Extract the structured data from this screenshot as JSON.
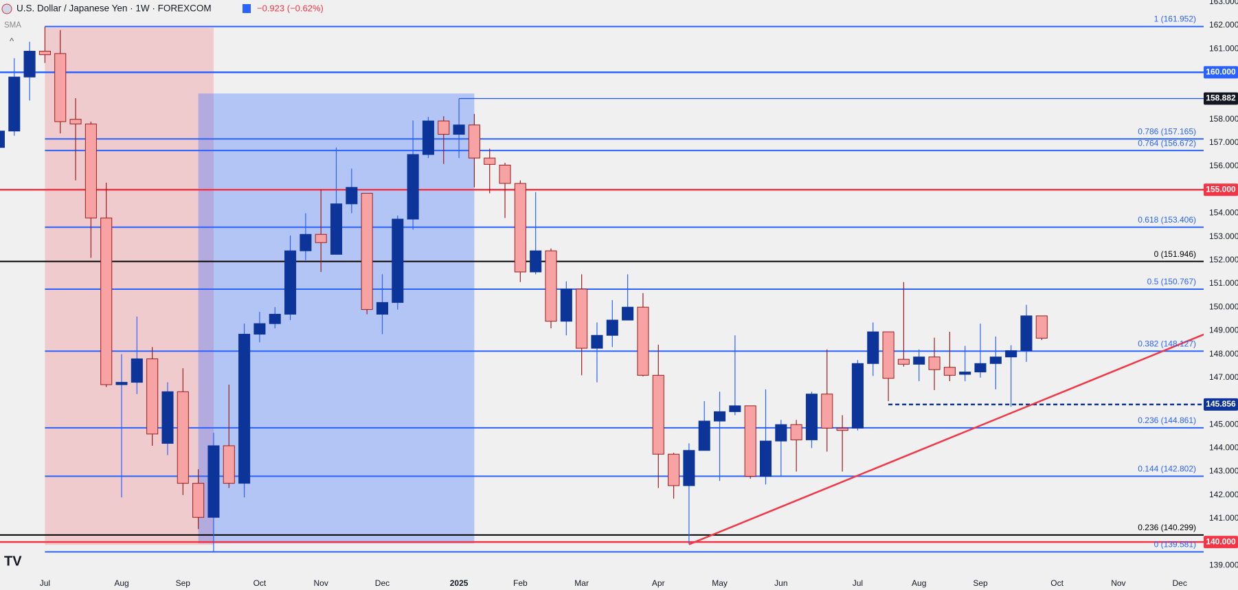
{
  "header": {
    "symbol": "U.S. Dollar / Japanese Yen · 1W · FOREXCOM",
    "change": "−0.923 (−0.62%)",
    "indicator": "SMA"
  },
  "chart_data": {
    "type": "candlestick",
    "categories": [
      null,
      null,
      null,
      "Jul",
      null,
      null,
      null,
      null,
      "Aug",
      null,
      null,
      null,
      "Sep",
      null,
      null,
      null,
      null,
      "Oct",
      null,
      null,
      null,
      "Nov",
      null,
      null,
      null,
      "Dec",
      null,
      null,
      null,
      null,
      "2025",
      null,
      null,
      null,
      "Feb",
      null,
      null,
      null,
      "Mar",
      null,
      null,
      null,
      null,
      "Apr",
      null,
      null,
      null,
      "May",
      null,
      null,
      null,
      "Jun",
      null,
      null,
      null,
      null,
      "Jul",
      null,
      null,
      null,
      "Aug",
      null,
      null,
      null,
      "Sep",
      null,
      null,
      null,
      null,
      "Oct",
      null,
      null,
      null,
      "Nov",
      null,
      null,
      null,
      "Dec"
    ],
    "ohlc": [
      [
        156.8,
        158.0,
        156.5,
        157.5
      ],
      [
        157.5,
        160.6,
        157.3,
        159.8
      ],
      [
        159.8,
        161.3,
        158.8,
        160.9
      ],
      [
        160.9,
        161.95,
        160.4,
        160.75
      ],
      [
        160.8,
        161.8,
        157.4,
        157.9
      ],
      [
        158.0,
        158.9,
        155.4,
        157.8
      ],
      [
        157.8,
        157.9,
        152.1,
        153.8
      ],
      [
        153.8,
        155.3,
        146.6,
        146.7
      ],
      [
        146.7,
        148.0,
        141.9,
        146.8
      ],
      [
        146.8,
        149.6,
        146.3,
        147.8
      ],
      [
        147.8,
        148.3,
        144.1,
        144.6
      ],
      [
        144.2,
        146.8,
        143.7,
        146.4
      ],
      [
        146.4,
        147.4,
        142.0,
        142.5
      ],
      [
        142.5,
        143.1,
        140.55,
        141.05
      ],
      [
        141.05,
        144.65,
        139.58,
        144.1
      ],
      [
        144.1,
        146.7,
        142.3,
        142.5
      ],
      [
        142.5,
        149.3,
        141.9,
        148.85
      ],
      [
        148.85,
        149.8,
        148.5,
        149.3
      ],
      [
        149.3,
        150.0,
        149.1,
        149.7
      ],
      [
        149.7,
        153.05,
        149.45,
        152.4
      ],
      [
        152.4,
        154.0,
        152.0,
        153.1
      ],
      [
        153.1,
        155.0,
        151.5,
        152.75
      ],
      [
        152.25,
        156.8,
        152.25,
        154.4
      ],
      [
        154.4,
        155.9,
        154.0,
        155.1
      ],
      [
        154.85,
        154.85,
        149.7,
        149.9
      ],
      [
        149.7,
        151.4,
        148.85,
        150.2
      ],
      [
        150.2,
        153.9,
        149.9,
        153.75
      ],
      [
        153.75,
        157.95,
        153.3,
        156.5
      ],
      [
        156.5,
        158.1,
        156.35,
        157.93
      ],
      [
        157.93,
        158.13,
        156.1,
        157.36
      ],
      [
        157.36,
        158.88,
        156.35,
        157.76
      ],
      [
        157.76,
        158.23,
        155.1,
        156.35
      ],
      [
        156.35,
        156.75,
        154.85,
        156.08
      ],
      [
        156.05,
        156.15,
        153.8,
        155.27
      ],
      [
        155.27,
        155.4,
        151.07,
        151.5
      ],
      [
        151.5,
        154.9,
        151.4,
        152.4
      ],
      [
        152.4,
        152.5,
        149.1,
        149.4
      ],
      [
        149.4,
        151.1,
        148.8,
        150.77
      ],
      [
        150.77,
        151.4,
        147.1,
        148.25
      ],
      [
        148.25,
        149.35,
        146.8,
        148.8
      ],
      [
        148.8,
        150.3,
        148.3,
        149.45
      ],
      [
        149.45,
        151.4,
        149.45,
        150.0
      ],
      [
        150.0,
        150.6,
        147.05,
        147.1
      ],
      [
        147.1,
        148.4,
        142.3,
        143.74
      ],
      [
        143.74,
        143.8,
        141.85,
        142.4
      ],
      [
        142.4,
        144.2,
        139.9,
        143.9
      ],
      [
        143.9,
        146.0,
        143.9,
        145.15
      ],
      [
        145.15,
        146.4,
        142.6,
        145.55
      ],
      [
        145.55,
        148.8,
        145.4,
        145.8
      ],
      [
        145.8,
        145.8,
        142.7,
        142.8
      ],
      [
        142.8,
        146.5,
        142.45,
        144.3
      ],
      [
        144.3,
        145.2,
        142.8,
        145.0
      ],
      [
        145.0,
        145.2,
        143.0,
        144.35
      ],
      [
        144.35,
        146.4,
        144.0,
        146.3
      ],
      [
        146.3,
        148.2,
        143.85,
        144.85
      ],
      [
        144.85,
        145.4,
        143.0,
        144.75
      ],
      [
        144.85,
        147.75,
        144.75,
        147.6
      ],
      [
        147.6,
        149.35,
        147.07,
        148.95
      ],
      [
        148.95,
        148.95,
        146.0,
        146.97
      ],
      [
        147.78,
        151.07,
        147.47,
        147.57
      ],
      [
        147.57,
        148.2,
        146.85,
        147.88
      ],
      [
        147.88,
        148.7,
        146.47,
        147.34
      ],
      [
        147.44,
        148.95,
        146.85,
        147.1
      ],
      [
        147.14,
        148.35,
        146.85,
        147.24
      ],
      [
        147.24,
        149.3,
        147.0,
        147.6
      ],
      [
        147.6,
        148.75,
        146.5,
        147.88
      ],
      [
        147.88,
        148.38,
        145.76,
        148.15
      ],
      [
        148.15,
        150.1,
        147.67,
        149.63
      ],
      [
        149.63,
        149.63,
        148.6,
        148.68
      ],
      null,
      null,
      null,
      null,
      null,
      null,
      null,
      null,
      null
    ],
    "up_color": "#0d3599",
    "up_wick": "#2962ff",
    "down_color": "#f7a3a3",
    "down_wick": "#9c1c1c",
    "xlim": [
      0.07,
      78.56
    ],
    "ylim": [
      138.6,
      163.08
    ],
    "yticks": [
      {
        "value": 139,
        "label": "139.000"
      },
      {
        "value": 141,
        "label": "141.000"
      },
      {
        "value": 142,
        "label": "142.000"
      },
      {
        "value": 143,
        "label": "143.000"
      },
      {
        "value": 144,
        "label": "144.000"
      },
      {
        "value": 145,
        "label": "145.000"
      },
      {
        "value": 147,
        "label": "147.000"
      },
      {
        "value": 148,
        "label": "148.000"
      },
      {
        "value": 149,
        "label": "149.000"
      },
      {
        "value": 150,
        "label": "150.000"
      },
      {
        "value": 151,
        "label": "151.000"
      },
      {
        "value": 152,
        "label": "152.000"
      },
      {
        "value": 153,
        "label": "153.000"
      },
      {
        "value": 154,
        "label": "154.000"
      },
      {
        "value": 156,
        "label": "156.000"
      },
      {
        "value": 157,
        "label": "157.000"
      },
      {
        "value": 158,
        "label": "158.000"
      },
      {
        "value": 161,
        "label": "161.000"
      },
      {
        "value": 162,
        "label": "162.000"
      },
      {
        "value": 163,
        "label": "163.000"
      }
    ],
    "zones": [
      {
        "start": 3,
        "end": 14,
        "top": 161.9,
        "bottom": 139.88,
        "color": "rgba(242,54,69,0.2)"
      },
      {
        "start": 13,
        "end": 31,
        "top": 159.1,
        "bottom": 139.94,
        "color": "rgba(41,98,255,0.3)"
      }
    ],
    "levels": [
      {
        "value": 161.952,
        "label": "1 (161.952)",
        "start": 3,
        "color": "#2962ff",
        "kind": "fib"
      },
      {
        "value": 160,
        "label": "160.000",
        "start": 0,
        "color": "#2962ff",
        "kind": "box"
      },
      {
        "value": 158.882,
        "label": "158.882",
        "start": 30,
        "color": "#1e53e5",
        "box": "#131722",
        "kind": "box",
        "thin": true
      },
      {
        "value": 157.165,
        "label": "0.786 (157.165)",
        "start": 3,
        "color": "#2962ff",
        "kind": "fib"
      },
      {
        "value": 156.672,
        "label": "0.764 (156.672)",
        "start": 3,
        "color": "#2962ff",
        "kind": "fib"
      },
      {
        "value": 155,
        "label": "155.000",
        "start": 0,
        "color": "#f23645",
        "kind": "box"
      },
      {
        "value": 153.406,
        "label": "0.618 (153.406)",
        "start": 3,
        "color": "#2962ff",
        "kind": "fib"
      },
      {
        "value": 151.946,
        "label": "0 (151.946)",
        "start": 0,
        "color": "#000000",
        "kind": "fib"
      },
      {
        "value": 150.767,
        "label": "0.5 (150.767)",
        "start": 3,
        "color": "#2962ff",
        "kind": "fib"
      },
      {
        "value": 148.127,
        "label": "0.382 (148.127)",
        "start": 3,
        "color": "#2962ff",
        "kind": "fib"
      },
      {
        "value": 145.856,
        "label": "145.856",
        "start": 58,
        "color": "#0d3599",
        "box": "#0d3599",
        "kind": "box",
        "dashed": true
      },
      {
        "value": 144.861,
        "label": "0.236 (144.861)",
        "start": 3,
        "color": "#2962ff",
        "kind": "fib"
      },
      {
        "value": 142.802,
        "label": "0.144 (142.802)",
        "start": 3,
        "color": "#2962ff",
        "kind": "fib"
      },
      {
        "value": 140.299,
        "label": "0.236 (140.299)",
        "start": 0,
        "color": "#000000",
        "kind": "fib"
      },
      {
        "value": 140,
        "label": "140.000",
        "start": 0,
        "color": "#f23645",
        "kind": "box"
      },
      {
        "value": 139.581,
        "label": "0 (139.581)",
        "start": 3,
        "color": "#2962ff",
        "kind": "fib"
      }
    ],
    "trendline": {
      "x": [
        45,
        80.9
      ],
      "y": [
        139.9,
        149.46
      ],
      "color": "#f23645"
    }
  }
}
